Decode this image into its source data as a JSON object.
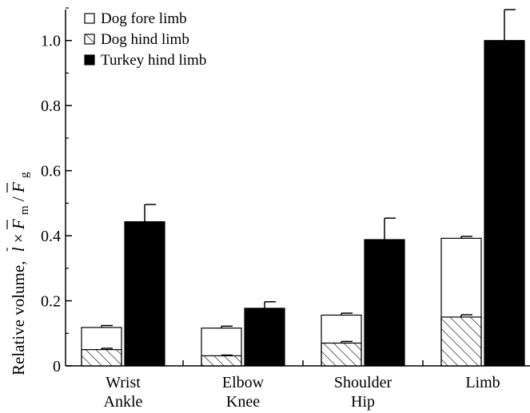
{
  "chart_data": {
    "type": "bar",
    "ylabel": "Relative volume,",
    "ylabel_math": [
      "l",
      " × ",
      "F",
      "m",
      "/",
      "F",
      "g"
    ],
    "ylim": [
      0,
      1.1
    ],
    "yticks": [
      "0",
      "0.2",
      "0.4",
      "0.6",
      "0.8",
      "1.0"
    ],
    "ytick_values": [
      0,
      0.2,
      0.4,
      0.6,
      0.8,
      1.0
    ],
    "categories": [
      {
        "line1": "Wrist",
        "line2": "Ankle"
      },
      {
        "line1": "Elbow",
        "line2": "Knee"
      },
      {
        "line1": "Shoulder",
        "line2": "Hip"
      },
      {
        "line1": "Limb",
        "line2": ""
      }
    ],
    "series": [
      {
        "name": "Dog fore limb",
        "values": [
          0.118,
          0.116,
          0.156,
          0.392
        ],
        "errors": [
          0.006,
          0.006,
          0.006,
          0.006
        ]
      },
      {
        "name": "Dog hind limb",
        "values": [
          0.05,
          0.031,
          0.07,
          0.15
        ],
        "errors": [
          0.004,
          0.002,
          0.005,
          0.007
        ]
      },
      {
        "name": "Turkey hind limb",
        "values": [
          0.443,
          0.177,
          0.388,
          1.0
        ],
        "errors": [
          0.053,
          0.02,
          0.066,
          0.095
        ]
      }
    ],
    "legend_position": "top-left",
    "grid": false,
    "colors": {
      "fore": "#ffffff",
      "hind_hatch": "#000000",
      "turkey": "#000000"
    }
  }
}
